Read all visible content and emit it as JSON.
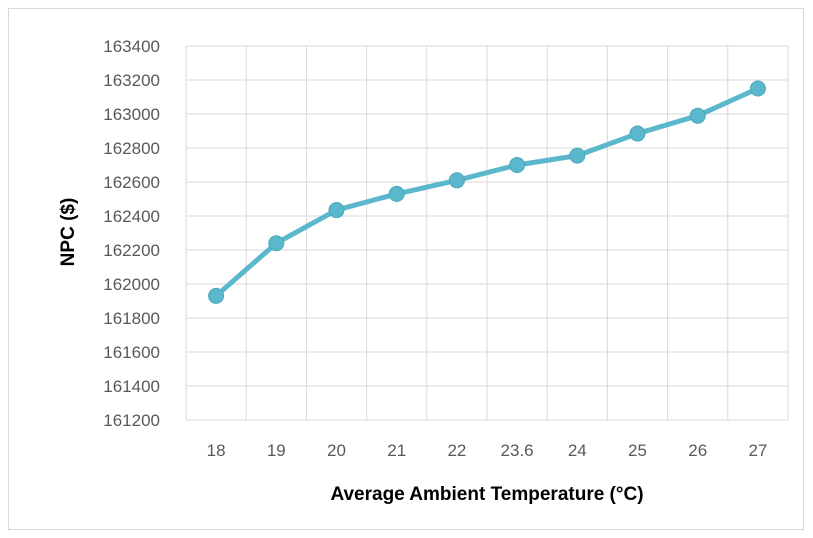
{
  "chart_data": {
    "type": "line",
    "title": "",
    "xlabel": "Average Ambient Temperature (°C)",
    "ylabel": "NPC ($)",
    "categories": [
      "18",
      "19",
      "20",
      "21",
      "22",
      "23.6",
      "24",
      "25",
      "26",
      "27"
    ],
    "series": [
      {
        "values": [
          161930,
          162240,
          162435,
          162530,
          162610,
          162700,
          162755,
          162885,
          162990,
          163150
        ]
      }
    ],
    "ylim": [
      161200,
      163400
    ],
    "yticks": [
      161200,
      161400,
      161600,
      161800,
      162000,
      162200,
      162400,
      162600,
      162800,
      163000,
      163200,
      163400
    ],
    "grid": true,
    "legend": "none",
    "colors": {
      "line": "#5BB8CC",
      "marker": "#5BB8CC",
      "grid": "#d9d9d9"
    }
  }
}
